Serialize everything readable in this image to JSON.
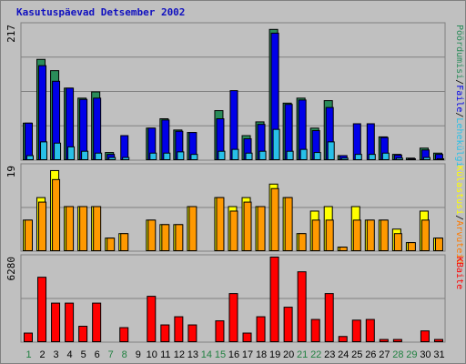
{
  "title": "Kasutuspäevad Detsember 2002",
  "colors": {
    "background": "#c0c0c0",
    "title": "#1010c0",
    "weekday_label": "#000000",
    "weekend_label": "#208040",
    "grid": "#808080",
    "hits_back": "#2a8c5a",
    "hits": "#0000e8",
    "files_back": "#000080",
    "files": "#00a0e0",
    "pages": "#28c0e8",
    "visits_back": "#ffff00",
    "visits": "#ff9900",
    "sites": "#ff7a00",
    "kbytes": "#ff0000"
  },
  "chart_data": [
    {
      "type": "bar",
      "name": "top-panel",
      "ymax_label": "217",
      "ylim": [
        0,
        217
      ],
      "legend_labels": [
        "Pöördumisi",
        "Faile",
        "Lehekülgi"
      ],
      "legend_sep": "/",
      "categories": [
        "1",
        "2",
        "3",
        "4",
        "5",
        "6",
        "7",
        "8",
        "9",
        "10",
        "11",
        "12",
        "13",
        "14",
        "15",
        "16",
        "17",
        "18",
        "19",
        "20",
        "21",
        "22",
        "23",
        "24",
        "25",
        "26",
        "27",
        "28",
        "29",
        "30",
        "31"
      ],
      "weekend_days": [
        "1",
        "7",
        "8",
        "14",
        "15",
        "21",
        "22",
        "28",
        "29"
      ],
      "series": [
        {
          "name": "Pöördumisi",
          "values": [
            60,
            162,
            144,
            116,
            100,
            110,
            13,
            0,
            0,
            52,
            67,
            49,
            45,
            0,
            80,
            0,
            40,
            62,
            210,
            92,
            100,
            52,
            96,
            8,
            0,
            0,
            38,
            10,
            4,
            20,
            12
          ]
        },
        {
          "name": "Faile",
          "values": [
            60,
            152,
            127,
            116,
            98,
            100,
            10,
            40,
            0,
            52,
            65,
            47,
            45,
            0,
            67,
            112,
            35,
            58,
            204,
            90,
            97,
            48,
            85,
            8,
            59,
            59,
            37,
            9,
            3,
            17,
            10
          ]
        },
        {
          "name": "Lehekülgi",
          "values": [
            8,
            30,
            28,
            22,
            15,
            12,
            5,
            5,
            0,
            12,
            12,
            14,
            10,
            0,
            15,
            18,
            12,
            15,
            50,
            15,
            18,
            13,
            30,
            4,
            10,
            10,
            12,
            4,
            2,
            5,
            3
          ]
        }
      ]
    },
    {
      "type": "bar",
      "name": "middle-panel",
      "ymax_label": "19",
      "ylim": [
        0,
        19
      ],
      "legend_labels": [
        "Külastusi",
        "Arvuteid"
      ],
      "legend_sep": "/",
      "series": [
        {
          "name": "Külastusi",
          "values": [
            7,
            12,
            18,
            10,
            10,
            10,
            3,
            4,
            0,
            7,
            6,
            6,
            10,
            0,
            12,
            10,
            12,
            10,
            15,
            12,
            4,
            9,
            10,
            1,
            10,
            7,
            7,
            5,
            2,
            9,
            3
          ]
        },
        {
          "name": "Arvuteid",
          "values": [
            7,
            11,
            16,
            10,
            10,
            10,
            3,
            4,
            0,
            7,
            6,
            6,
            10,
            0,
            12,
            9,
            11,
            10,
            14,
            12,
            4,
            7,
            7,
            1,
            7,
            7,
            7,
            4,
            2,
            7,
            3
          ]
        }
      ]
    },
    {
      "type": "bar",
      "name": "bottom-panel",
      "ymax_label": "6280",
      "ylim": [
        0,
        6280
      ],
      "legend_labels": [
        "KBaite"
      ],
      "series": [
        {
          "name": "KBaite",
          "values": [
            700,
            4800,
            2900,
            2900,
            1200,
            2900,
            30,
            1100,
            0,
            3400,
            1300,
            1900,
            1300,
            0,
            1600,
            3600,
            700,
            1900,
            6280,
            2600,
            5200,
            1700,
            3600,
            450,
            1650,
            1700,
            230,
            230,
            75,
            860,
            230
          ]
        }
      ]
    }
  ]
}
